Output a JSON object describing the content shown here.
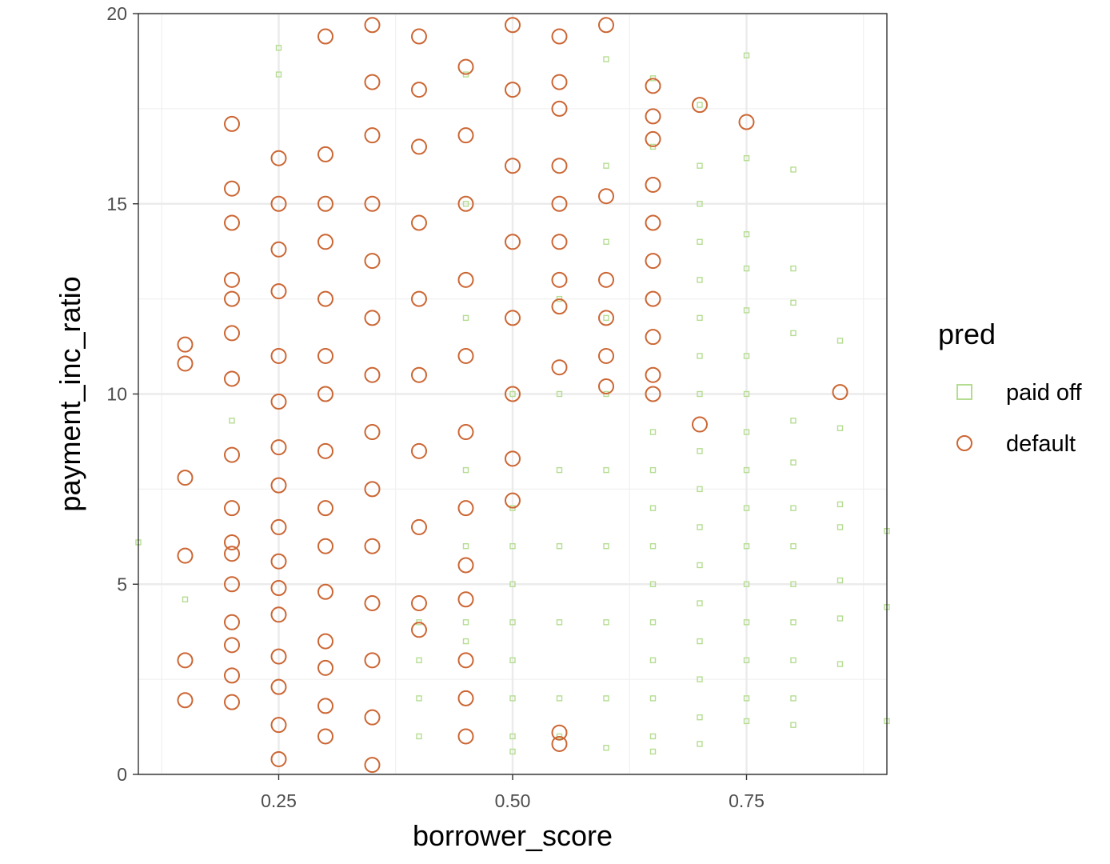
{
  "chart_data": {
    "type": "scatter",
    "xlabel": "borrower_score",
    "ylabel": "payment_inc_ratio",
    "xlim": [
      0.1,
      0.9
    ],
    "ylim": [
      0,
      20
    ],
    "x_ticks": [
      {
        "value": 0.25,
        "label": "0.25"
      },
      {
        "value": 0.5,
        "label": "0.50"
      },
      {
        "value": 0.75,
        "label": "0.75"
      }
    ],
    "y_ticks": [
      {
        "value": 0,
        "label": "0"
      },
      {
        "value": 5,
        "label": "5"
      },
      {
        "value": 10,
        "label": "10"
      },
      {
        "value": 15,
        "label": "15"
      },
      {
        "value": 20,
        "label": "20"
      }
    ],
    "grid": true,
    "legend": {
      "title": "pred",
      "position": "right",
      "items": [
        {
          "label": "paid off",
          "shape": "square",
          "color": "#b5dd91"
        },
        {
          "label": "default",
          "shape": "circle",
          "color": "#cc6633"
        }
      ]
    },
    "series": [
      {
        "name": "default",
        "shape": "circle",
        "color": "#cc6633",
        "points": [
          [
            0.15,
            11.3
          ],
          [
            0.15,
            10.8
          ],
          [
            0.15,
            7.8
          ],
          [
            0.15,
            5.75
          ],
          [
            0.15,
            3.0
          ],
          [
            0.15,
            1.95
          ],
          [
            0.2,
            17.1
          ],
          [
            0.2,
            15.4
          ],
          [
            0.2,
            14.5
          ],
          [
            0.2,
            13.0
          ],
          [
            0.2,
            12.5
          ],
          [
            0.2,
            11.6
          ],
          [
            0.2,
            10.4
          ],
          [
            0.2,
            8.4
          ],
          [
            0.2,
            7.0
          ],
          [
            0.2,
            6.1
          ],
          [
            0.2,
            5.8
          ],
          [
            0.2,
            5.0
          ],
          [
            0.2,
            4.0
          ],
          [
            0.2,
            3.4
          ],
          [
            0.2,
            2.6
          ],
          [
            0.2,
            1.9
          ],
          [
            0.25,
            16.2
          ],
          [
            0.25,
            15.0
          ],
          [
            0.25,
            13.8
          ],
          [
            0.25,
            12.7
          ],
          [
            0.25,
            11.0
          ],
          [
            0.25,
            9.8
          ],
          [
            0.25,
            8.6
          ],
          [
            0.25,
            7.6
          ],
          [
            0.25,
            6.5
          ],
          [
            0.25,
            5.6
          ],
          [
            0.25,
            4.9
          ],
          [
            0.25,
            4.2
          ],
          [
            0.25,
            3.1
          ],
          [
            0.25,
            2.3
          ],
          [
            0.25,
            1.3
          ],
          [
            0.25,
            0.4
          ],
          [
            0.3,
            19.4
          ],
          [
            0.3,
            16.3
          ],
          [
            0.3,
            15.0
          ],
          [
            0.3,
            14.0
          ],
          [
            0.3,
            12.5
          ],
          [
            0.3,
            11.0
          ],
          [
            0.3,
            10.0
          ],
          [
            0.3,
            8.5
          ],
          [
            0.3,
            7.0
          ],
          [
            0.3,
            6.0
          ],
          [
            0.3,
            4.8
          ],
          [
            0.3,
            3.5
          ],
          [
            0.3,
            2.8
          ],
          [
            0.3,
            1.8
          ],
          [
            0.3,
            1.0
          ],
          [
            0.35,
            19.7
          ],
          [
            0.35,
            18.2
          ],
          [
            0.35,
            16.8
          ],
          [
            0.35,
            15.0
          ],
          [
            0.35,
            13.5
          ],
          [
            0.35,
            12.0
          ],
          [
            0.35,
            10.5
          ],
          [
            0.35,
            9.0
          ],
          [
            0.35,
            7.5
          ],
          [
            0.35,
            6.0
          ],
          [
            0.35,
            4.5
          ],
          [
            0.35,
            3.0
          ],
          [
            0.35,
            1.5
          ],
          [
            0.35,
            0.25
          ],
          [
            0.4,
            19.4
          ],
          [
            0.4,
            18.0
          ],
          [
            0.4,
            16.5
          ],
          [
            0.4,
            14.5
          ],
          [
            0.4,
            12.5
          ],
          [
            0.4,
            10.5
          ],
          [
            0.4,
            8.5
          ],
          [
            0.4,
            6.5
          ],
          [
            0.4,
            4.5
          ],
          [
            0.4,
            3.8
          ],
          [
            0.45,
            18.6
          ],
          [
            0.45,
            16.8
          ],
          [
            0.45,
            15.0
          ],
          [
            0.45,
            13.0
          ],
          [
            0.45,
            11.0
          ],
          [
            0.45,
            9.0
          ],
          [
            0.45,
            7.0
          ],
          [
            0.45,
            5.5
          ],
          [
            0.45,
            4.6
          ],
          [
            0.45,
            3.0
          ],
          [
            0.45,
            2.0
          ],
          [
            0.45,
            1.0
          ],
          [
            0.5,
            19.7
          ],
          [
            0.5,
            18.0
          ],
          [
            0.5,
            16.0
          ],
          [
            0.5,
            14.0
          ],
          [
            0.5,
            12.0
          ],
          [
            0.5,
            10.0
          ],
          [
            0.5,
            8.3
          ],
          [
            0.5,
            7.2
          ],
          [
            0.55,
            19.4
          ],
          [
            0.55,
            18.2
          ],
          [
            0.55,
            17.5
          ],
          [
            0.55,
            16.0
          ],
          [
            0.55,
            15.0
          ],
          [
            0.55,
            14.0
          ],
          [
            0.55,
            13.0
          ],
          [
            0.55,
            12.3
          ],
          [
            0.55,
            10.7
          ],
          [
            0.55,
            1.1
          ],
          [
            0.55,
            0.8
          ],
          [
            0.6,
            19.7
          ],
          [
            0.6,
            15.2
          ],
          [
            0.6,
            13.0
          ],
          [
            0.6,
            12.0
          ],
          [
            0.6,
            11.0
          ],
          [
            0.6,
            10.2
          ],
          [
            0.65,
            18.1
          ],
          [
            0.65,
            17.3
          ],
          [
            0.65,
            16.7
          ],
          [
            0.65,
            15.5
          ],
          [
            0.65,
            14.5
          ],
          [
            0.65,
            13.5
          ],
          [
            0.65,
            12.5
          ],
          [
            0.65,
            11.5
          ],
          [
            0.65,
            10.5
          ],
          [
            0.65,
            10.0
          ],
          [
            0.7,
            17.6
          ],
          [
            0.7,
            9.2
          ],
          [
            0.75,
            17.15
          ],
          [
            0.85,
            10.05
          ]
        ]
      },
      {
        "name": "paid off",
        "shape": "square",
        "color": "#b5dd91",
        "points": [
          [
            0.1,
            6.1
          ],
          [
            0.15,
            4.6
          ],
          [
            0.2,
            9.3
          ],
          [
            0.25,
            19.1
          ],
          [
            0.25,
            18.4
          ],
          [
            0.4,
            4.0
          ],
          [
            0.4,
            3.0
          ],
          [
            0.4,
            2.0
          ],
          [
            0.4,
            1.0
          ],
          [
            0.45,
            18.4
          ],
          [
            0.45,
            15.0
          ],
          [
            0.45,
            12.0
          ],
          [
            0.45,
            8.0
          ],
          [
            0.45,
            6.0
          ],
          [
            0.45,
            4.0
          ],
          [
            0.45,
            3.5
          ],
          [
            0.5,
            10.0
          ],
          [
            0.5,
            7.0
          ],
          [
            0.5,
            6.0
          ],
          [
            0.5,
            5.0
          ],
          [
            0.5,
            4.0
          ],
          [
            0.5,
            3.0
          ],
          [
            0.5,
            2.0
          ],
          [
            0.5,
            1.0
          ],
          [
            0.5,
            0.6
          ],
          [
            0.55,
            12.5
          ],
          [
            0.55,
            10.0
          ],
          [
            0.55,
            8.0
          ],
          [
            0.55,
            6.0
          ],
          [
            0.55,
            4.0
          ],
          [
            0.55,
            2.0
          ],
          [
            0.55,
            1.0
          ],
          [
            0.6,
            18.8
          ],
          [
            0.6,
            16.0
          ],
          [
            0.6,
            14.0
          ],
          [
            0.6,
            12.0
          ],
          [
            0.6,
            10.0
          ],
          [
            0.6,
            8.0
          ],
          [
            0.6,
            6.0
          ],
          [
            0.6,
            4.0
          ],
          [
            0.6,
            2.0
          ],
          [
            0.6,
            0.7
          ],
          [
            0.65,
            18.3
          ],
          [
            0.65,
            16.5
          ],
          [
            0.65,
            9.0
          ],
          [
            0.65,
            8.0
          ],
          [
            0.65,
            7.0
          ],
          [
            0.65,
            6.0
          ],
          [
            0.65,
            5.0
          ],
          [
            0.65,
            4.0
          ],
          [
            0.65,
            3.0
          ],
          [
            0.65,
            2.0
          ],
          [
            0.65,
            1.0
          ],
          [
            0.65,
            0.6
          ],
          [
            0.7,
            17.6
          ],
          [
            0.7,
            16.0
          ],
          [
            0.7,
            15.0
          ],
          [
            0.7,
            14.0
          ],
          [
            0.7,
            13.0
          ],
          [
            0.7,
            12.0
          ],
          [
            0.7,
            11.0
          ],
          [
            0.7,
            10.0
          ],
          [
            0.7,
            8.5
          ],
          [
            0.7,
            7.5
          ],
          [
            0.7,
            6.5
          ],
          [
            0.7,
            5.5
          ],
          [
            0.7,
            4.5
          ],
          [
            0.7,
            3.5
          ],
          [
            0.7,
            2.5
          ],
          [
            0.7,
            1.5
          ],
          [
            0.7,
            0.8
          ],
          [
            0.75,
            18.9
          ],
          [
            0.75,
            16.2
          ],
          [
            0.75,
            14.2
          ],
          [
            0.75,
            13.3
          ],
          [
            0.75,
            12.2
          ],
          [
            0.75,
            11.0
          ],
          [
            0.75,
            10.0
          ],
          [
            0.75,
            9.0
          ],
          [
            0.75,
            8.0
          ],
          [
            0.75,
            7.0
          ],
          [
            0.75,
            6.0
          ],
          [
            0.75,
            5.0
          ],
          [
            0.75,
            4.0
          ],
          [
            0.75,
            3.0
          ],
          [
            0.75,
            2.0
          ],
          [
            0.75,
            1.4
          ],
          [
            0.8,
            15.9
          ],
          [
            0.8,
            13.3
          ],
          [
            0.8,
            12.4
          ],
          [
            0.8,
            11.6
          ],
          [
            0.8,
            9.3
          ],
          [
            0.8,
            8.2
          ],
          [
            0.8,
            7.0
          ],
          [
            0.8,
            6.0
          ],
          [
            0.8,
            5.0
          ],
          [
            0.8,
            4.0
          ],
          [
            0.8,
            3.0
          ],
          [
            0.8,
            2.0
          ],
          [
            0.8,
            1.3
          ],
          [
            0.85,
            11.4
          ],
          [
            0.85,
            9.1
          ],
          [
            0.85,
            7.1
          ],
          [
            0.85,
            6.5
          ],
          [
            0.85,
            5.1
          ],
          [
            0.85,
            4.1
          ],
          [
            0.85,
            2.9
          ],
          [
            0.9,
            6.4
          ],
          [
            0.9,
            4.4
          ],
          [
            0.9,
            1.4
          ]
        ]
      }
    ]
  }
}
